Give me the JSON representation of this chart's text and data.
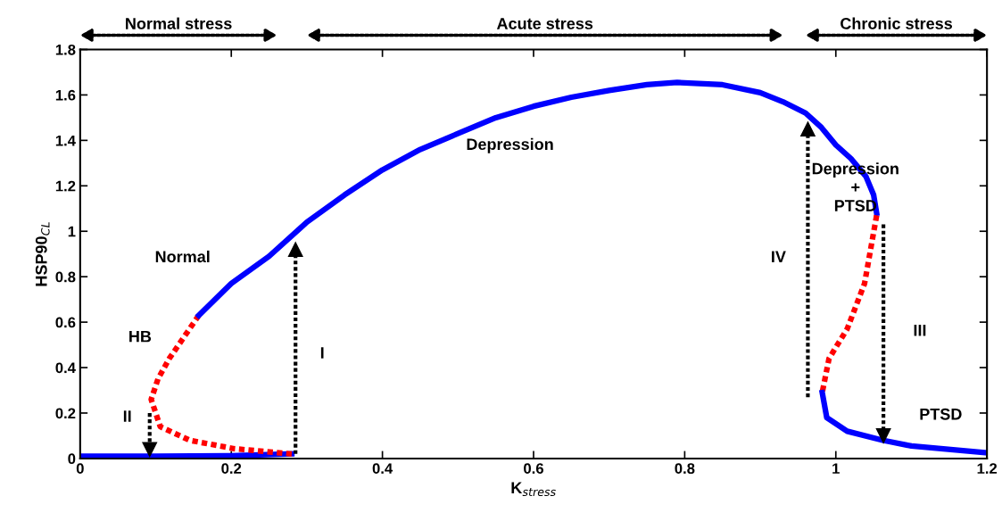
{
  "chart_data": {
    "type": "line",
    "xlabel": "K$_{stress}$",
    "ylabel": "HSP90$_{CL}$",
    "xlim": [
      0,
      1.2
    ],
    "ylim": [
      0,
      1.8
    ],
    "xticks": [
      0,
      0.2,
      0.4,
      0.6,
      0.8,
      1,
      1.2
    ],
    "yticks": [
      0,
      0.2,
      0.4,
      0.6,
      0.8,
      1,
      1.2,
      1.4,
      1.6,
      1.8
    ],
    "grid": false,
    "legend": false,
    "marker": "none",
    "series": [
      {
        "color": "#0000ff",
        "line_style": "solid",
        "x": [
          0,
          0.1,
          0.2,
          0.28
        ],
        "values": [
          0.01,
          0.01,
          0.012,
          0.02
        ]
      },
      {
        "color": "#ff0000",
        "line_style": "dotted",
        "x": [
          0.28,
          0.204,
          0.145,
          0.106,
          0.094,
          0.103,
          0.118,
          0.157
        ],
        "values": [
          0.02,
          0.043,
          0.08,
          0.14,
          0.26,
          0.35,
          0.44,
          0.63
        ]
      },
      {
        "color": "#0000ff",
        "line_style": "solid",
        "x": [
          0.157,
          0.2,
          0.25,
          0.3,
          0.35,
          0.4,
          0.45,
          0.5,
          0.55,
          0.6,
          0.65,
          0.7,
          0.75,
          0.79,
          0.85,
          0.9,
          0.93,
          0.96,
          0.98,
          1.0,
          1.02,
          1.04,
          1.05,
          1.054
        ],
        "values": [
          0.63,
          0.77,
          0.89,
          1.04,
          1.16,
          1.27,
          1.36,
          1.43,
          1.5,
          1.55,
          1.59,
          1.62,
          1.645,
          1.655,
          1.645,
          1.61,
          1.57,
          1.52,
          1.46,
          1.38,
          1.32,
          1.24,
          1.16,
          1.08
        ]
      },
      {
        "color": "#ff0000",
        "line_style": "dotted",
        "x": [
          1.054,
          1.038,
          1.015,
          0.991,
          0.982
        ],
        "values": [
          1.07,
          0.77,
          0.57,
          0.44,
          0.29
        ]
      },
      {
        "color": "#0000ff",
        "line_style": "solid",
        "x": [
          0.982,
          0.988,
          1.015,
          1.062,
          1.1,
          1.2
        ],
        "values": [
          0.29,
          0.18,
          0.12,
          0.08,
          0.055,
          0.025
        ]
      },
      {
        "color": "#000000",
        "line_style": "dotted",
        "marker": "triangle",
        "x": [
          0.285,
          0.285
        ],
        "values": [
          0.02,
          0.92
        ]
      },
      {
        "color": "#000000",
        "line_style": "dotted",
        "marker": "triangle",
        "x": [
          0.092,
          0.092
        ],
        "values": [
          0.2,
          0.04
        ]
      },
      {
        "color": "#000000",
        "line_style": "dotted",
        "marker": "triangle",
        "x": [
          1.063,
          1.063
        ],
        "values": [
          1.03,
          0.1
        ]
      },
      {
        "color": "#000000",
        "line_style": "dotted",
        "marker": "triangle",
        "x": [
          0.963,
          0.963
        ],
        "values": [
          0.27,
          1.45
        ]
      }
    ],
    "annotations": [
      "Normal stress",
      "Acute stress",
      "Chronic stress",
      "Normal",
      "HB",
      "II",
      "I",
      "Depression",
      "Depression\n+\nPTSD",
      "IV",
      "III",
      "PTSD"
    ]
  }
}
